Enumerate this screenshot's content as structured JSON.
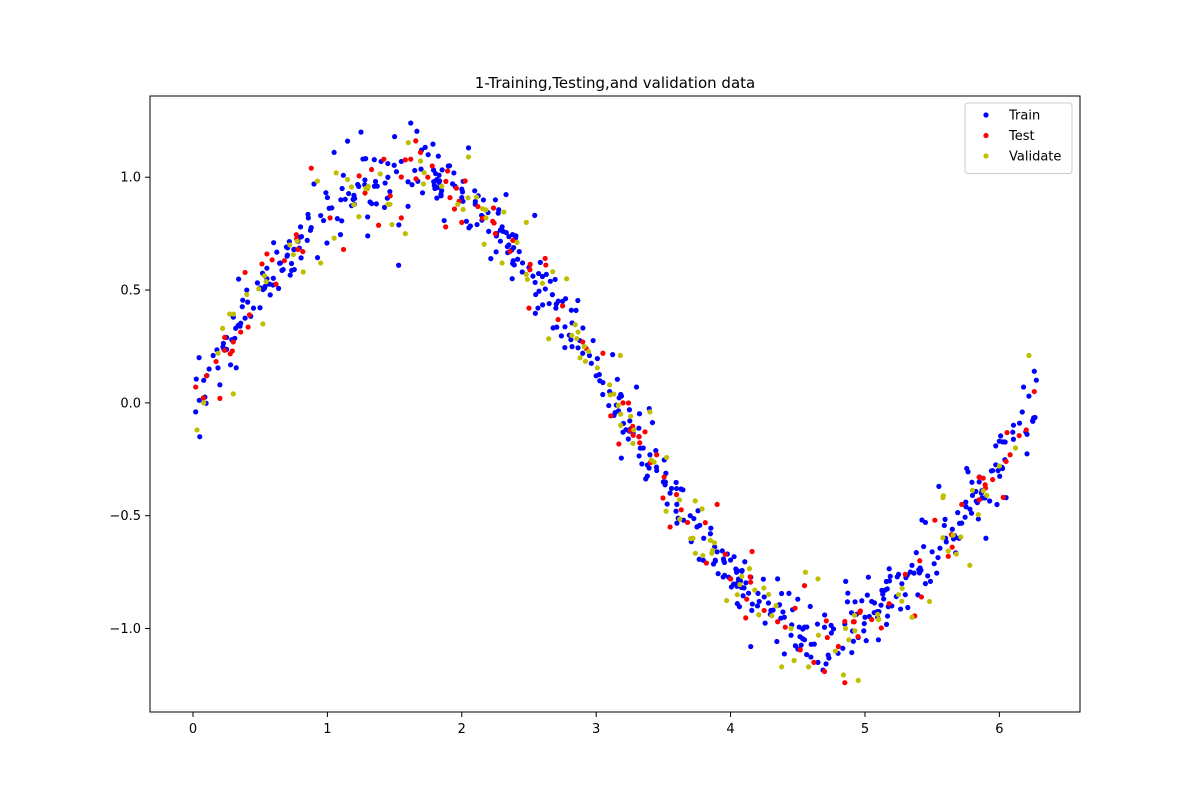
{
  "chart_data": {
    "type": "scatter",
    "title": "1-Training,Testing,and validation data",
    "xlabel": "",
    "ylabel": "",
    "xlim": [
      -0.32,
      6.6
    ],
    "ylim": [
      -1.37,
      1.36
    ],
    "xticks": [
      0,
      1,
      2,
      3,
      4,
      5,
      6
    ],
    "xtick_labels": [
      "0",
      "1",
      "2",
      "3",
      "4",
      "5",
      "6"
    ],
    "yticks": [
      -1.0,
      -0.5,
      0.0,
      0.5,
      1.0
    ],
    "ytick_labels": [
      "−1.0",
      "−0.5",
      "0.0",
      "0.5",
      "1.0"
    ],
    "grid": false,
    "legend_position": "top-right",
    "underlying_function": "y ≈ sin(x) + noise",
    "series": [
      {
        "name": "Train",
        "color": "#0000ff",
        "count": 560,
        "noise_sd": 0.08,
        "x_range": [
          0.02,
          6.28
        ],
        "points": [
          [
            0.02,
            -0.04
          ],
          [
            0.05,
            -0.15
          ],
          [
            0.08,
            0.1
          ],
          [
            0.12,
            0.15
          ],
          [
            0.15,
            0.21
          ],
          [
            0.2,
            0.08
          ],
          [
            0.25,
            0.29
          ],
          [
            0.3,
            0.38
          ],
          [
            0.35,
            0.34
          ],
          [
            0.4,
            0.5
          ],
          [
            0.45,
            0.42
          ],
          [
            0.5,
            0.51
          ],
          [
            0.55,
            0.55
          ],
          [
            0.6,
            0.71
          ],
          [
            0.65,
            0.62
          ],
          [
            0.7,
            0.65
          ],
          [
            0.75,
            0.68
          ],
          [
            0.8,
            0.78
          ],
          [
            0.85,
            0.72
          ],
          [
            0.9,
            0.97
          ],
          [
            0.95,
            0.83
          ],
          [
            1.0,
            0.91
          ],
          [
            1.05,
            1.11
          ],
          [
            1.1,
            0.9
          ],
          [
            1.15,
            1.16
          ],
          [
            1.2,
            0.88
          ],
          [
            1.25,
            1.2
          ],
          [
            1.3,
            0.74
          ],
          [
            1.35,
            0.96
          ],
          [
            1.4,
            1.07
          ],
          [
            1.45,
            1.0
          ],
          [
            1.5,
            1.18
          ],
          [
            1.53,
            0.61
          ],
          [
            1.55,
            1.07
          ],
          [
            1.6,
            0.98
          ],
          [
            1.62,
            1.24
          ],
          [
            1.65,
            1.03
          ],
          [
            1.7,
            1.12
          ],
          [
            1.75,
            1.1
          ],
          [
            1.8,
            0.95
          ],
          [
            1.85,
            0.94
          ],
          [
            1.9,
            1.05
          ],
          [
            1.95,
            0.96
          ],
          [
            2.0,
            0.91
          ],
          [
            2.05,
            1.13
          ],
          [
            2.1,
            0.88
          ],
          [
            2.15,
            0.81
          ],
          [
            2.2,
            0.76
          ],
          [
            2.25,
            0.9
          ],
          [
            2.3,
            0.78
          ],
          [
            2.35,
            0.7
          ],
          [
            2.4,
            0.73
          ],
          [
            2.45,
            0.58
          ],
          [
            2.5,
            0.6
          ],
          [
            2.55,
            0.48
          ],
          [
            2.6,
            0.56
          ],
          [
            2.65,
            0.44
          ],
          [
            2.7,
            0.42
          ],
          [
            2.75,
            0.45
          ],
          [
            2.8,
            0.3
          ],
          [
            2.85,
            0.41
          ],
          [
            2.9,
            0.22
          ],
          [
            2.95,
            0.21
          ],
          [
            3.0,
            0.12
          ],
          [
            3.05,
            0.09
          ],
          [
            3.1,
            0.05
          ],
          [
            3.15,
            -0.01
          ],
          [
            3.2,
            -0.13
          ],
          [
            3.25,
            -0.08
          ],
          [
            3.3,
            0.07
          ],
          [
            3.35,
            -0.2
          ],
          [
            3.4,
            -0.23
          ],
          [
            3.45,
            -0.3
          ],
          [
            3.5,
            -0.35
          ],
          [
            3.55,
            -0.4
          ],
          [
            3.6,
            -0.45
          ],
          [
            3.65,
            -0.52
          ],
          [
            3.7,
            -0.5
          ],
          [
            3.75,
            -0.55
          ],
          [
            3.8,
            -0.6
          ],
          [
            3.85,
            -0.58
          ],
          [
            3.9,
            -0.66
          ],
          [
            3.95,
            -0.7
          ],
          [
            4.0,
            -0.78
          ],
          [
            4.05,
            -0.8
          ],
          [
            4.1,
            -0.82
          ],
          [
            4.15,
            -1.08
          ],
          [
            4.2,
            -0.9
          ],
          [
            4.25,
            -0.86
          ],
          [
            4.3,
            -0.92
          ],
          [
            4.35,
            -0.78
          ],
          [
            4.4,
            -0.95
          ],
          [
            4.45,
            -1.03
          ],
          [
            4.5,
            -0.87
          ],
          [
            4.55,
            -1.05
          ],
          [
            4.6,
            -1.07
          ],
          [
            4.65,
            -1.15
          ],
          [
            4.7,
            -0.94
          ],
          [
            4.75,
            -1.02
          ],
          [
            4.8,
            -1.11
          ],
          [
            4.85,
            -0.98
          ],
          [
            4.9,
            -0.93
          ],
          [
            4.95,
            -1.04
          ],
          [
            5.0,
            -0.95
          ],
          [
            5.05,
            -0.88
          ],
          [
            5.1,
            -1.05
          ],
          [
            5.15,
            -0.83
          ],
          [
            5.2,
            -0.9
          ],
          [
            5.25,
            -0.76
          ],
          [
            5.3,
            -0.85
          ],
          [
            5.35,
            -0.72
          ],
          [
            5.4,
            -0.74
          ],
          [
            5.45,
            -0.53
          ],
          [
            5.5,
            -0.66
          ],
          [
            5.55,
            -0.37
          ],
          [
            5.6,
            -0.6
          ],
          [
            5.65,
            -0.56
          ],
          [
            5.7,
            -0.6
          ],
          [
            5.75,
            -0.44
          ],
          [
            5.8,
            -0.41
          ],
          [
            5.85,
            -0.35
          ],
          [
            5.9,
            -0.6
          ],
          [
            5.95,
            -0.3
          ],
          [
            6.0,
            -0.17
          ],
          [
            6.05,
            -0.42
          ],
          [
            6.1,
            -0.13
          ],
          [
            6.15,
            -0.09
          ],
          [
            6.18,
            0.07
          ],
          [
            6.22,
            0.03
          ],
          [
            6.26,
            0.14
          ]
        ]
      },
      {
        "name": "Test",
        "color": "#ff0000",
        "count": 140,
        "noise_sd": 0.08,
        "x_range": [
          0.02,
          6.28
        ],
        "points": [
          [
            0.02,
            0.07
          ],
          [
            0.1,
            0.12
          ],
          [
            0.2,
            0.02
          ],
          [
            0.3,
            0.27
          ],
          [
            0.42,
            0.39
          ],
          [
            0.55,
            0.66
          ],
          [
            0.68,
            0.63
          ],
          [
            0.78,
            0.68
          ],
          [
            0.88,
            1.04
          ],
          [
            1.02,
            0.82
          ],
          [
            1.12,
            0.68
          ],
          [
            1.28,
            0.93
          ],
          [
            1.42,
            1.08
          ],
          [
            1.55,
            0.82
          ],
          [
            1.62,
            1.08
          ],
          [
            1.78,
            1.05
          ],
          [
            1.88,
            0.78
          ],
          [
            2.0,
            0.8
          ],
          [
            2.12,
            0.87
          ],
          [
            2.25,
            0.75
          ],
          [
            2.38,
            0.72
          ],
          [
            2.5,
            0.42
          ],
          [
            2.62,
            0.64
          ],
          [
            2.75,
            0.43
          ],
          [
            2.9,
            0.27
          ],
          [
            3.05,
            0.22
          ],
          [
            3.2,
            0.0
          ],
          [
            3.32,
            -0.15
          ],
          [
            3.45,
            -0.23
          ],
          [
            3.55,
            -0.55
          ],
          [
            3.68,
            -0.53
          ],
          [
            3.82,
            -0.71
          ],
          [
            3.9,
            -0.45
          ],
          [
            4.0,
            -0.78
          ],
          [
            4.12,
            -0.87
          ],
          [
            4.25,
            -0.92
          ],
          [
            4.35,
            -0.97
          ],
          [
            4.48,
            -0.91
          ],
          [
            4.55,
            -0.81
          ],
          [
            4.62,
            -1.15
          ],
          [
            4.72,
            -1.04
          ],
          [
            4.85,
            -1.24
          ],
          [
            4.92,
            -0.97
          ],
          [
            5.05,
            -0.96
          ],
          [
            5.18,
            -0.89
          ],
          [
            5.3,
            -0.76
          ],
          [
            5.42,
            -0.86
          ],
          [
            5.52,
            -0.52
          ],
          [
            5.62,
            -0.68
          ],
          [
            5.72,
            -0.45
          ],
          [
            5.85,
            -0.43
          ],
          [
            5.95,
            -0.34
          ],
          [
            6.08,
            -0.23
          ],
          [
            6.2,
            -0.12
          ],
          [
            6.26,
            0.05
          ]
        ]
      },
      {
        "name": "Validate",
        "color": "#bfbf00",
        "count": 140,
        "noise_sd": 0.08,
        "x_range": [
          0.02,
          6.28
        ],
        "points": [
          [
            0.03,
            -0.12
          ],
          [
            0.08,
            0.0
          ],
          [
            0.22,
            0.33
          ],
          [
            0.3,
            0.04
          ],
          [
            0.4,
            0.48
          ],
          [
            0.52,
            0.35
          ],
          [
            0.72,
            0.7
          ],
          [
            0.82,
            0.58
          ],
          [
            0.95,
            0.62
          ],
          [
            1.05,
            0.73
          ],
          [
            1.15,
            0.99
          ],
          [
            1.3,
            0.95
          ],
          [
            1.45,
            0.88
          ],
          [
            1.58,
            0.75
          ],
          [
            1.72,
            1.02
          ],
          [
            1.85,
            0.96
          ],
          [
            1.97,
            0.88
          ],
          [
            2.05,
            1.09
          ],
          [
            2.18,
            0.82
          ],
          [
            2.3,
            0.62
          ],
          [
            2.48,
            0.8
          ],
          [
            2.6,
            0.53
          ],
          [
            2.78,
            0.55
          ],
          [
            2.88,
            0.2
          ],
          [
            3.1,
            0.08
          ],
          [
            3.18,
            0.21
          ],
          [
            3.28,
            -0.12
          ],
          [
            3.4,
            -0.04
          ],
          [
            3.52,
            -0.48
          ],
          [
            3.62,
            -0.43
          ],
          [
            3.72,
            -0.6
          ],
          [
            3.88,
            -0.62
          ],
          [
            4.05,
            -0.85
          ],
          [
            4.18,
            -0.83
          ],
          [
            4.38,
            -1.17
          ],
          [
            4.45,
            -1.0
          ],
          [
            4.58,
            -1.17
          ],
          [
            4.65,
            -0.78
          ],
          [
            4.78,
            -1.1
          ],
          [
            4.88,
            -1.05
          ],
          [
            4.95,
            -1.23
          ],
          [
            5.1,
            -0.96
          ],
          [
            5.25,
            -0.85
          ],
          [
            5.35,
            -0.95
          ],
          [
            5.48,
            -0.88
          ],
          [
            5.58,
            -0.42
          ],
          [
            5.68,
            -0.67
          ],
          [
            5.78,
            -0.72
          ],
          [
            5.88,
            -0.39
          ],
          [
            6.0,
            -0.28
          ],
          [
            6.12,
            -0.2
          ],
          [
            6.22,
            0.21
          ]
        ]
      }
    ]
  }
}
